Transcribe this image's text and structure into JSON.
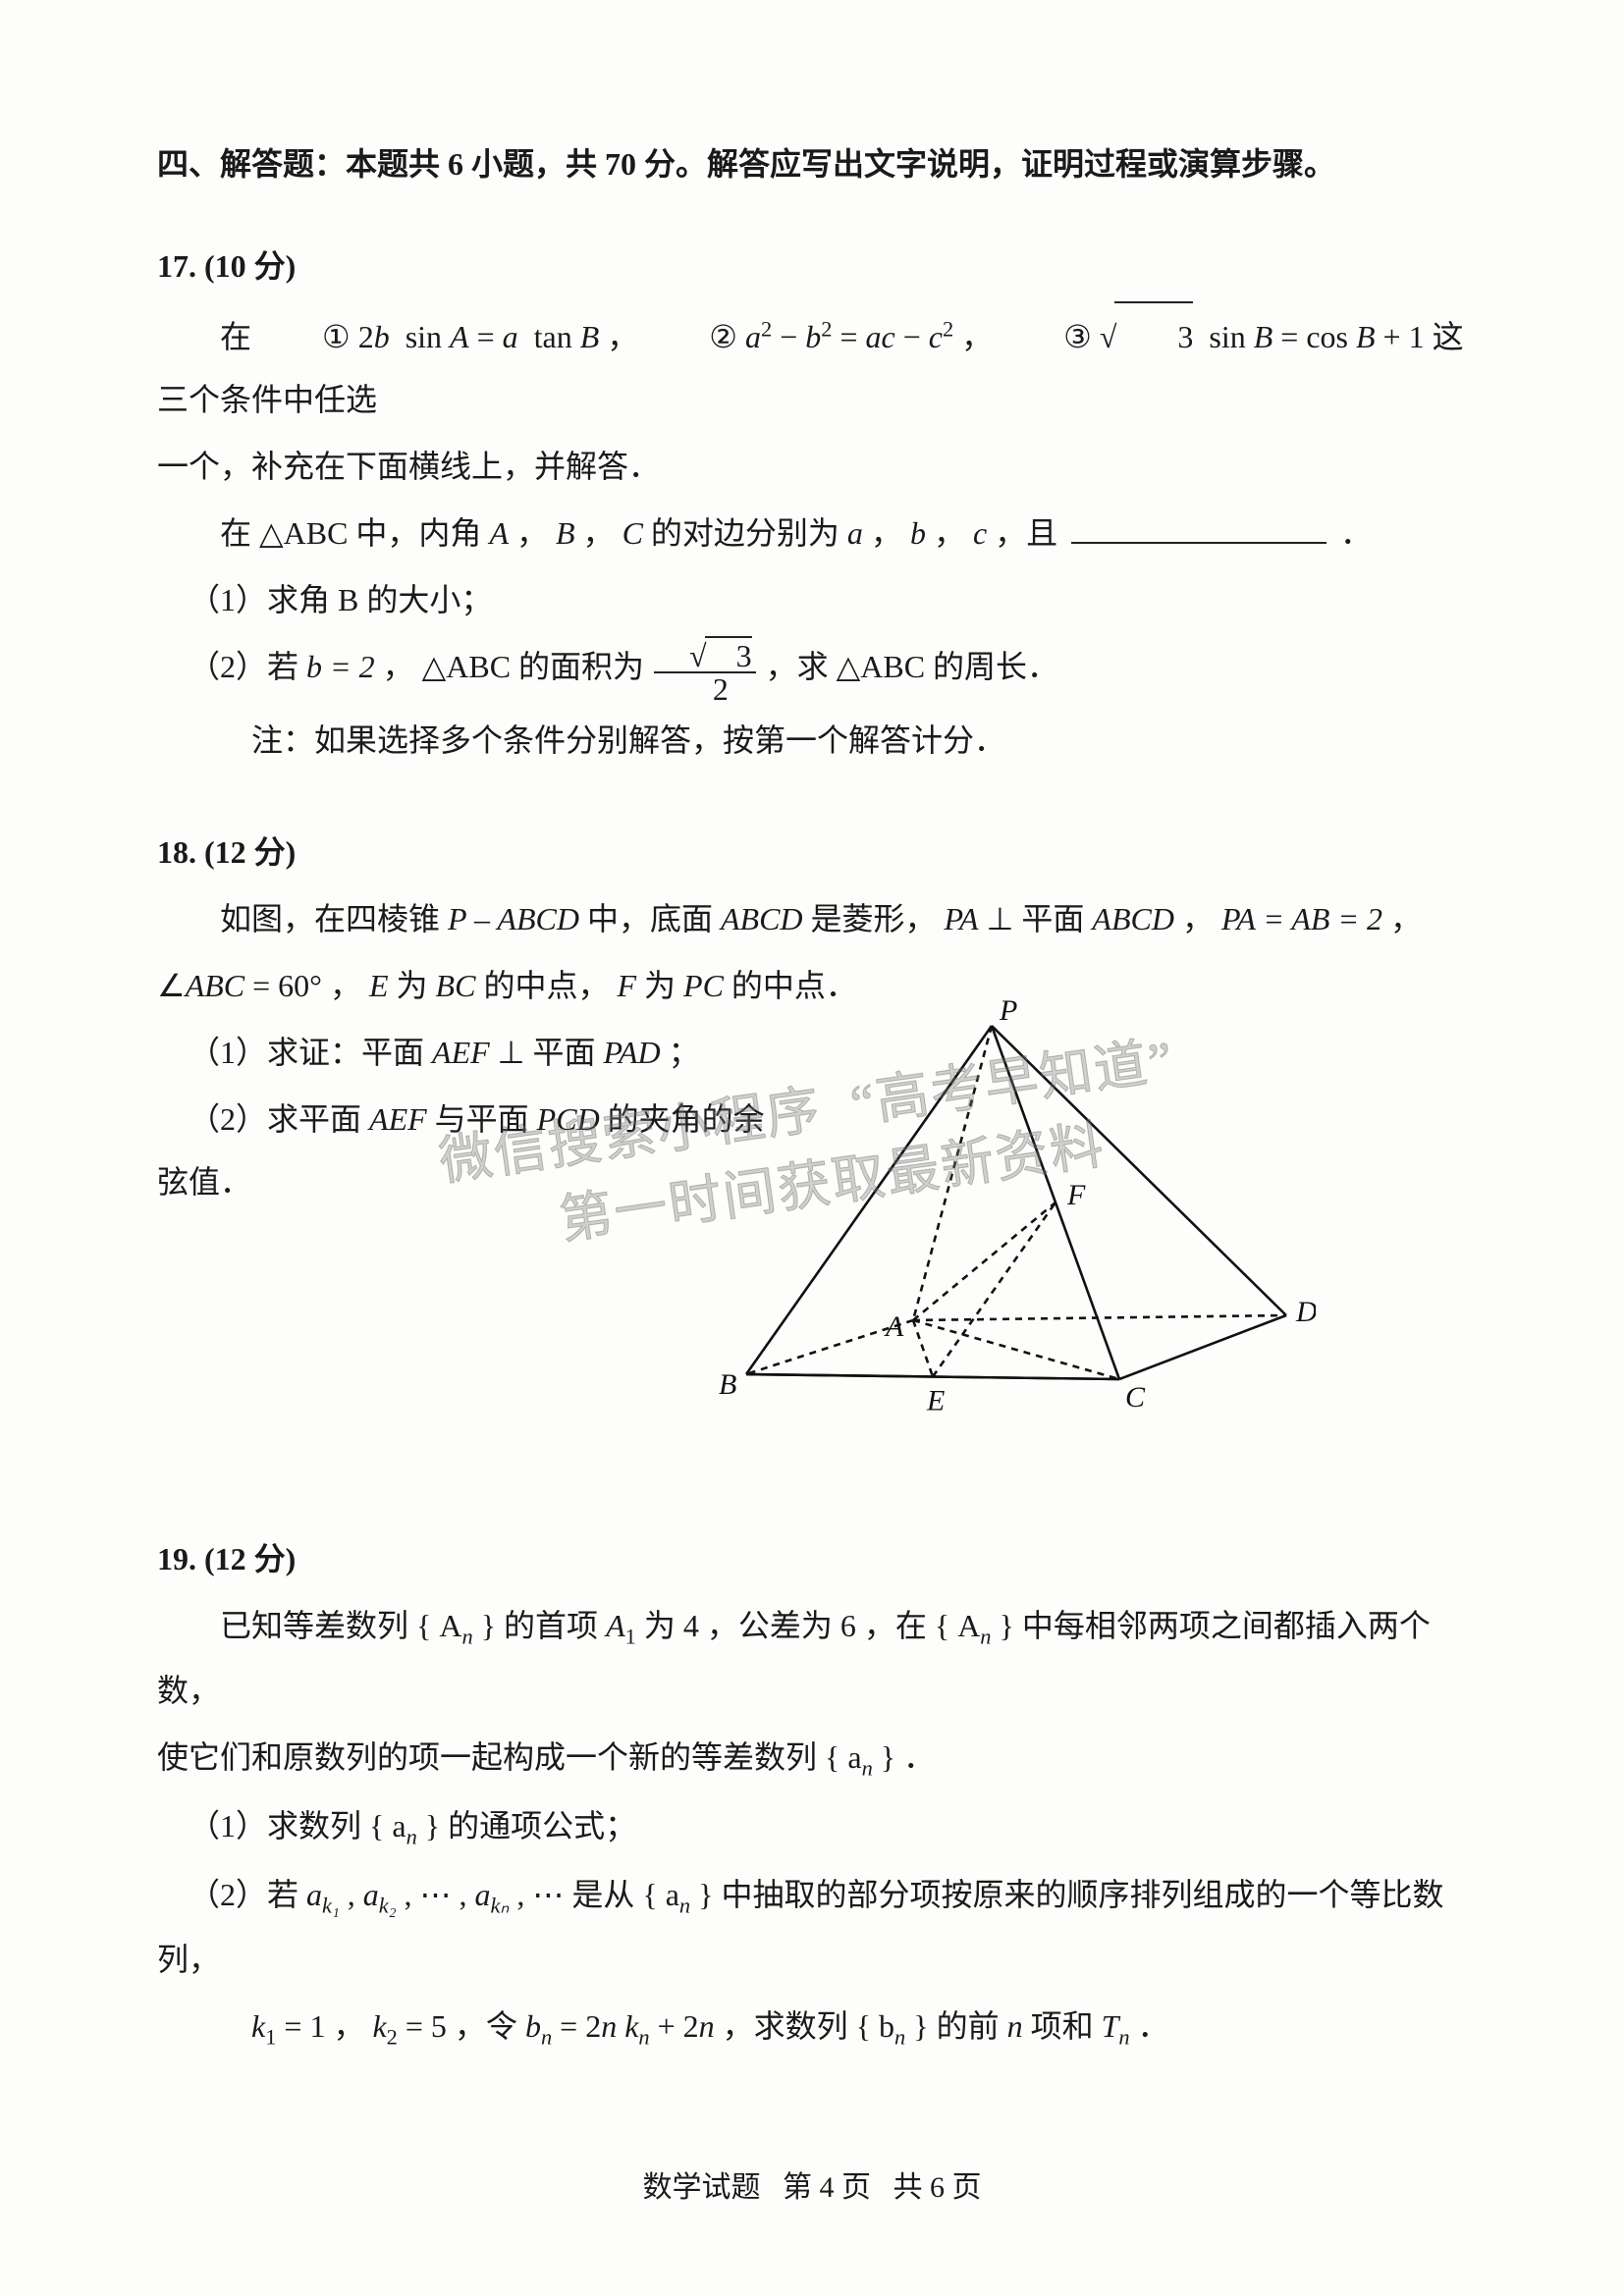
{
  "section": {
    "heading": "四、解答题：本题共 6 小题，共 70 分。解答应写出文字说明，证明过程或演算步骤。"
  },
  "q17": {
    "num": "17.",
    "points": "(10 分)",
    "intro_pre": "在",
    "cond1_label": "①",
    "cond1_lhs_coef": "2",
    "cond1_lhs_var": "b",
    "cond1_lhs_fn": "sin",
    "cond1_lhs_arg": "A",
    "cond1_eq": " = ",
    "cond1_rhs_var": "a",
    "cond1_rhs_fn": "tan",
    "cond1_rhs_arg": "B",
    "sep": " ，",
    "cond2_label": "②",
    "cond2_a": "a",
    "cond2_b": "b",
    "cond2_c": "c",
    "cond2_text_eq": " = ",
    "cond3_label": "③",
    "cond3_sqrt": "3",
    "cond3_sin": "sin",
    "cond3_B": "B",
    "cond3_cos": "cos",
    "cond3_plus1": " + 1",
    "intro_post": " 这三个条件中任选",
    "line2": "一个，补充在下面横线上，并解答．",
    "line3_pre": "在 ",
    "triangle": "△ABC",
    "line3_mid": " 中，内角 ",
    "A": "A",
    "B": "B",
    "C": "C",
    "line3_mid2": " 的对边分别为 ",
    "a": "a",
    "b": "b",
    "c_": "c",
    "line3_end": " ，且 ",
    "line3_period": "．",
    "sub1": "（1）求角 B 的大小；",
    "sub2_pre": "（2）若 ",
    "sub2_b2": "b = 2",
    "sub2_mid": " ， ",
    "sub2_area_pre": " 的面积为 ",
    "sub2_frac_num": "√3",
    "sub2_frac_den": "2",
    "sub2_post": " ，求 ",
    "sub2_end": " 的周长．",
    "note": "注：如果选择多个条件分别解答，按第一个解答计分．"
  },
  "q18": {
    "num": "18.",
    "points": "(12 分)",
    "line1_pre": "如图，在四棱锥 ",
    "pyramid": "P – ABCD",
    "line1_mid": " 中，底面 ",
    "ABCD": "ABCD",
    "line1_mid2": " 是菱形，",
    "PA": "PA",
    "perp": " ⊥ ",
    "plane": "平面 ",
    "line1_mid3": " ， ",
    "PA_AB_2": "PA = AB = 2",
    "line1_end": " ，",
    "line2_pre": "∠",
    "angleABC": "ABC",
    "eq60": " = 60°",
    "line2_mid": " ， ",
    "E": "E",
    "line2_mid2": " 为 ",
    "BC": "BC",
    "line2_mid3": " 的中点，",
    "F": "F",
    "PC": "PC",
    "line2_end": " 的中点．",
    "sub1_pre": "（1）求证：平面 ",
    "AEF": "AEF",
    "sub1_perp": " ⊥ ",
    "sub1_mid": "平面 ",
    "PAD": "PAD",
    "sub1_end": " ；",
    "sub2_pre": "（2）求平面 ",
    "sub2_mid": " 与平面 ",
    "PCD": "PCD",
    "sub2_end": " 的夹角的余弦值．",
    "fig": {
      "P": "P",
      "A": "A",
      "B": "B",
      "C": "C",
      "D": "D",
      "E": "E",
      "F": "F",
      "stroke": "#111111",
      "stroke_width": 2.6,
      "dash": "7,6"
    }
  },
  "q19": {
    "num": "19.",
    "points": "(12 分)",
    "line1_pre": "已知等差数列 ",
    "seqA": "{ A",
    "seqA_sub": "n",
    "seqA_close": " }",
    "line1_mid1": " 的首项 ",
    "A1": "A",
    "A1_sub": "1",
    "line1_mid2": " 为 4 ，公差为 6 ，在 ",
    "line1_mid3": " 中每相邻两项之间都插入两个数，",
    "line2_pre": "使它们和原数列的项一起构成一个新的等差数列 ",
    "seqa": "{ a",
    "seqa_sub": "n",
    "seqa_close": " }",
    "line2_end": " ．",
    "sub1_pre": "（1）求数列 ",
    "sub1_end": " 的通项公式；",
    "sub2_pre": "（2）若 ",
    "ak1": "a",
    "ak1_sub": "k₁",
    "comma": " , ",
    "ak2": "a",
    "ak2_sub": "k₂",
    "dots": " , ⋯ , ",
    "akn": "a",
    "akn_sub": "kₙ",
    "dots2": " , ⋯ ",
    "sub2_mid": "是从 ",
    "sub2_mid2": " 中抽取的部分项按原来的顺序排列组成的一个等比数列，",
    "sub3_k1": "k",
    "sub3_k1sub": "1",
    "sub3_eq1": " = 1",
    "sub3_sep": " ， ",
    "sub3_k2": "k",
    "sub3_k2sub": "2",
    "sub3_eq5": " = 5",
    "sub3_let": " ，令 ",
    "bn": "b",
    "bn_sub": "n",
    "sub3_eq": " = 2n k",
    "sub3_kn_sub": "n",
    "sub3_plus": " + 2n",
    "sub3_mid": " ，求数列 ",
    "seqb": "{ b",
    "seqb_sub": "n",
    "seqb_close": " }",
    "sub3_mid2": " 的前 ",
    "n": "n",
    "sub3_mid3": " 项和 ",
    "Tn": "T",
    "Tn_sub": "n",
    "sub3_end": " ．"
  },
  "watermark": "微信搜索小程序  “高考早知道”\n  第一时间获取最新资料",
  "footer": {
    "left": "数学试题",
    "mid": "第 4 页",
    "right": "共 6 页"
  }
}
